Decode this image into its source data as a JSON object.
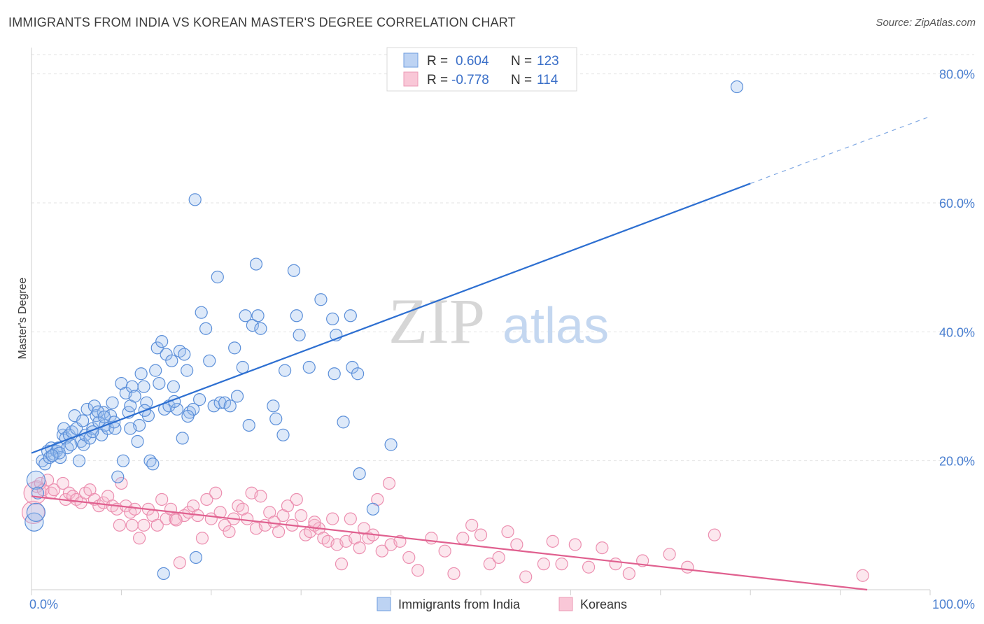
{
  "header": {
    "title": "IMMIGRANTS FROM INDIA VS KOREAN MASTER'S DEGREE CORRELATION CHART",
    "source": "Source: ZipAtlas.com"
  },
  "watermark": {
    "zip": "ZIP",
    "atlas": "atlas"
  },
  "colors": {
    "blue": "#5b8fd9",
    "blue_line": "#2d6fd1",
    "pink": "#ee8aab",
    "pink_line": "#e0608f",
    "axis_text": "#4a7fd0"
  },
  "chart_data": {
    "type": "scatter",
    "title": "IMMIGRANTS FROM INDIA VS KOREAN MASTER'S DEGREE CORRELATION CHART",
    "xlabel": "",
    "ylabel": "Master's Degree",
    "xlim": [
      0,
      100
    ],
    "ylim": [
      0,
      83
    ],
    "x_tick_labels": [
      "0.0%",
      "100.0%"
    ],
    "y_ticks": [
      20,
      40,
      60,
      80
    ],
    "y_tick_labels": [
      "20.0%",
      "40.0%",
      "60.0%",
      "80.0%"
    ],
    "grid": true,
    "legend_position": "top-center",
    "legend": [
      {
        "r_label": "R =",
        "r_value": "0.604",
        "n_label": "N =",
        "n_value": "123"
      },
      {
        "r_label": "R =",
        "r_value": "-0.778",
        "n_label": "N =",
        "n_value": "114"
      }
    ],
    "series": [
      {
        "name": "Immigrants from India",
        "color": "#5b8fd9",
        "trend": {
          "x": [
            0,
            80
          ],
          "y": [
            21.2,
            63.0
          ],
          "dashed_to": [
            100,
            73.4
          ]
        },
        "points": [
          [
            0.3,
            10.5
          ],
          [
            0.5,
            12
          ],
          [
            0.5,
            17
          ],
          [
            0.7,
            15
          ],
          [
            1.2,
            20
          ],
          [
            1.5,
            19.5
          ],
          [
            1.8,
            21.5
          ],
          [
            2.0,
            20.5
          ],
          [
            2.2,
            22
          ],
          [
            2.5,
            21
          ],
          [
            2.8,
            21.5
          ],
          [
            3.0,
            22
          ],
          [
            3.2,
            20.5
          ],
          [
            3.5,
            24
          ],
          [
            3.6,
            25
          ],
          [
            3.8,
            23.5
          ],
          [
            4.0,
            22
          ],
          [
            4.2,
            24
          ],
          [
            4.5,
            24.5
          ],
          [
            4.8,
            27
          ],
          [
            5.0,
            25
          ],
          [
            5.3,
            20
          ],
          [
            5.5,
            23
          ],
          [
            5.8,
            22.5
          ],
          [
            6.0,
            24
          ],
          [
            6.2,
            28
          ],
          [
            6.5,
            23.5
          ],
          [
            6.8,
            25
          ],
          [
            7.0,
            28.5
          ],
          [
            7.2,
            27
          ],
          [
            7.5,
            26
          ],
          [
            7.8,
            24
          ],
          [
            8.0,
            27.5
          ],
          [
            8.2,
            25.5
          ],
          [
            8.5,
            25
          ],
          [
            8.8,
            27
          ],
          [
            9.0,
            29
          ],
          [
            9.3,
            25
          ],
          [
            9.6,
            17.5
          ],
          [
            10.0,
            32
          ],
          [
            10.2,
            20
          ],
          [
            10.5,
            30.5
          ],
          [
            10.8,
            27.5
          ],
          [
            11.0,
            28.5
          ],
          [
            11.2,
            31.5
          ],
          [
            11.5,
            30
          ],
          [
            11.8,
            23
          ],
          [
            12.0,
            25.5
          ],
          [
            12.2,
            33.5
          ],
          [
            12.5,
            31.5
          ],
          [
            12.8,
            29
          ],
          [
            13.0,
            27
          ],
          [
            13.2,
            20
          ],
          [
            13.5,
            19.5
          ],
          [
            13.8,
            34
          ],
          [
            14.0,
            37.5
          ],
          [
            14.2,
            32
          ],
          [
            14.5,
            38.5
          ],
          [
            14.8,
            28
          ],
          [
            15.0,
            36.5
          ],
          [
            15.3,
            28.5
          ],
          [
            15.6,
            35.5
          ],
          [
            15.8,
            31.5
          ],
          [
            16.2,
            28
          ],
          [
            16.5,
            37
          ],
          [
            16.8,
            23.5
          ],
          [
            17.0,
            36.5
          ],
          [
            17.3,
            34
          ],
          [
            17.6,
            27.5
          ],
          [
            18.0,
            28
          ],
          [
            18.3,
            5
          ],
          [
            18.7,
            29.5
          ],
          [
            18.9,
            43
          ],
          [
            19.4,
            40.5
          ],
          [
            19.8,
            35.5
          ],
          [
            20.3,
            28.5
          ],
          [
            20.7,
            48.5
          ],
          [
            21.0,
            29
          ],
          [
            21.5,
            29
          ],
          [
            22.1,
            28.5
          ],
          [
            22.6,
            37.5
          ],
          [
            22.9,
            30
          ],
          [
            23.5,
            34.5
          ],
          [
            23.8,
            42.5
          ],
          [
            24.2,
            25.5
          ],
          [
            24.6,
            41
          ],
          [
            25.0,
            50.5
          ],
          [
            25.2,
            42.5
          ],
          [
            25.5,
            40.5
          ],
          [
            26.9,
            28.5
          ],
          [
            27.2,
            26.5
          ],
          [
            28.0,
            24
          ],
          [
            28.2,
            34
          ],
          [
            29.2,
            49.5
          ],
          [
            29.5,
            42.5
          ],
          [
            29.8,
            39.5
          ],
          [
            30.9,
            34.5
          ],
          [
            32.2,
            45
          ],
          [
            33.5,
            42
          ],
          [
            33.7,
            33.5
          ],
          [
            33.9,
            39.5
          ],
          [
            34.7,
            26
          ],
          [
            35.5,
            42.5
          ],
          [
            35.7,
            34.5
          ],
          [
            36.3,
            33.5
          ],
          [
            36.5,
            18
          ],
          [
            38.0,
            12.5
          ],
          [
            40.0,
            22.5
          ],
          [
            18.2,
            60.5
          ],
          [
            78.5,
            78
          ],
          [
            14.7,
            2.5
          ],
          [
            11.0,
            25
          ],
          [
            9.2,
            26
          ],
          [
            6.8,
            24.5
          ],
          [
            4.4,
            22.5
          ],
          [
            3.1,
            21.2
          ],
          [
            2.3,
            20.8
          ],
          [
            5.7,
            26.2
          ],
          [
            7.4,
            27.6
          ],
          [
            8.1,
            26.8
          ],
          [
            12.6,
            27.8
          ],
          [
            15.9,
            29.2
          ],
          [
            17.4,
            26.9
          ]
        ]
      },
      {
        "name": "Koreans",
        "color": "#ee8aab",
        "trend": {
          "x": [
            0,
            93
          ],
          "y": [
            14.5,
            0.0
          ]
        },
        "points": [
          [
            0.2,
            12
          ],
          [
            0.4,
            15
          ],
          [
            0.6,
            16
          ],
          [
            1.0,
            16.5
          ],
          [
            1.3,
            15.5
          ],
          [
            1.8,
            17
          ],
          [
            2.2,
            15
          ],
          [
            2.5,
            15.5
          ],
          [
            3.5,
            16.5
          ],
          [
            3.8,
            14
          ],
          [
            4.2,
            15
          ],
          [
            4.6,
            14.5
          ],
          [
            5.0,
            14
          ],
          [
            5.5,
            13.5
          ],
          [
            6.0,
            15
          ],
          [
            6.5,
            15.5
          ],
          [
            7.0,
            14
          ],
          [
            7.5,
            13
          ],
          [
            8.0,
            13.5
          ],
          [
            8.5,
            14.5
          ],
          [
            9.0,
            13
          ],
          [
            9.5,
            12.5
          ],
          [
            9.8,
            10
          ],
          [
            10.0,
            16.5
          ],
          [
            10.5,
            13
          ],
          [
            11.0,
            12
          ],
          [
            11.2,
            10
          ],
          [
            11.5,
            12.5
          ],
          [
            12.0,
            8
          ],
          [
            12.5,
            10
          ],
          [
            13.0,
            12.5
          ],
          [
            13.5,
            11.5
          ],
          [
            14.0,
            10
          ],
          [
            14.5,
            14
          ],
          [
            15.0,
            11
          ],
          [
            15.5,
            12.5
          ],
          [
            16.0,
            11
          ],
          [
            16.5,
            4.2
          ],
          [
            17.0,
            11.5
          ],
          [
            17.5,
            12
          ],
          [
            18.0,
            13
          ],
          [
            18.5,
            11.5
          ],
          [
            19.0,
            8
          ],
          [
            19.5,
            14
          ],
          [
            20.0,
            11
          ],
          [
            20.5,
            15
          ],
          [
            21.0,
            12
          ],
          [
            21.5,
            10
          ],
          [
            22.0,
            9
          ],
          [
            22.5,
            11
          ],
          [
            23.0,
            13
          ],
          [
            23.5,
            12.5
          ],
          [
            24.0,
            11
          ],
          [
            24.5,
            15
          ],
          [
            25.0,
            9.5
          ],
          [
            25.5,
            14.5
          ],
          [
            26.0,
            10
          ],
          [
            26.5,
            12
          ],
          [
            27.0,
            10.5
          ],
          [
            27.5,
            9
          ],
          [
            28.0,
            11.5
          ],
          [
            28.5,
            13
          ],
          [
            29.0,
            10
          ],
          [
            29.5,
            14
          ],
          [
            30.0,
            11.5
          ],
          [
            30.5,
            8.5
          ],
          [
            31.0,
            9
          ],
          [
            31.5,
            10
          ],
          [
            32.0,
            9.5
          ],
          [
            32.5,
            8
          ],
          [
            33.0,
            7.5
          ],
          [
            33.5,
            11
          ],
          [
            34.0,
            7
          ],
          [
            34.5,
            4
          ],
          [
            35.0,
            7.5
          ],
          [
            35.5,
            11
          ],
          [
            36.0,
            8
          ],
          [
            36.5,
            6.5
          ],
          [
            37.0,
            9.5
          ],
          [
            37.5,
            8
          ],
          [
            38.0,
            8.5
          ],
          [
            38.5,
            14
          ],
          [
            39.0,
            6
          ],
          [
            40.0,
            7
          ],
          [
            41.0,
            7.5
          ],
          [
            42.0,
            5
          ],
          [
            43.0,
            3
          ],
          [
            44.5,
            8
          ],
          [
            46.0,
            6
          ],
          [
            47.0,
            2.5
          ],
          [
            48.0,
            8
          ],
          [
            49.0,
            10
          ],
          [
            50.0,
            8.5
          ],
          [
            51.0,
            4
          ],
          [
            52.0,
            5
          ],
          [
            53.0,
            9
          ],
          [
            54.0,
            7
          ],
          [
            55.0,
            2
          ],
          [
            57.0,
            4
          ],
          [
            58.0,
            7.5
          ],
          [
            59.0,
            4
          ],
          [
            60.5,
            7
          ],
          [
            62.0,
            3.5
          ],
          [
            63.5,
            6.5
          ],
          [
            65.0,
            4
          ],
          [
            66.5,
            2.5
          ],
          [
            68.0,
            4.5
          ],
          [
            71.0,
            5.5
          ],
          [
            73.0,
            3.5
          ],
          [
            76.0,
            8.5
          ],
          [
            92.5,
            2.2
          ],
          [
            39.8,
            16.5
          ],
          [
            31.5,
            10.5
          ],
          [
            16.1,
            10.8
          ]
        ]
      }
    ]
  },
  "bottom_legend": [
    {
      "label": "Immigrants from India"
    },
    {
      "label": "Koreans"
    }
  ]
}
